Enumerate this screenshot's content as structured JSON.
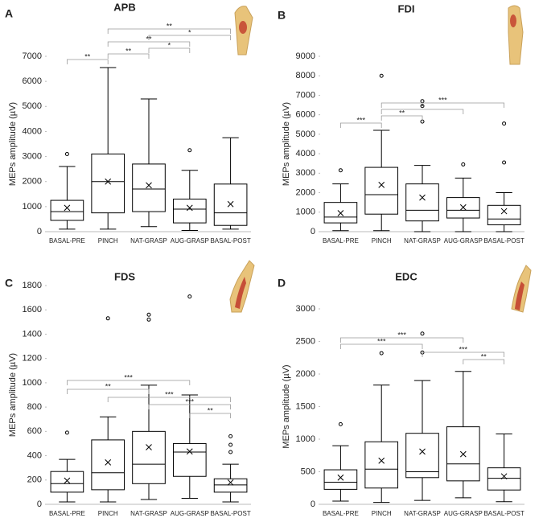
{
  "chart_data": [
    {
      "type": "box",
      "panel": "A",
      "title": "APB",
      "y_label": "MEPs amplitude (µV)",
      "categories": [
        "BASAL-PRE",
        "PINCH",
        "NAT-GRASP",
        "AUG-GRASP",
        "BASAL-POST"
      ],
      "boxes": [
        {
          "min": 100,
          "q1": 450,
          "median": 800,
          "q3": 1250,
          "max": 2600,
          "mean": 950,
          "outliers": [
            3100
          ]
        },
        {
          "min": 100,
          "q1": 750,
          "median": 2000,
          "q3": 3100,
          "max": 6550,
          "mean": 2000,
          "outliers": []
        },
        {
          "min": 200,
          "q1": 800,
          "median": 1700,
          "q3": 2700,
          "max": 5300,
          "mean": 1850,
          "outliers": []
        },
        {
          "min": 50,
          "q1": 350,
          "median": 900,
          "q3": 1300,
          "max": 2450,
          "mean": 950,
          "outliers": [
            3250
          ]
        },
        {
          "min": 100,
          "q1": 250,
          "median": 750,
          "q3": 1900,
          "max": 3750,
          "mean": 1100,
          "outliers": []
        }
      ],
      "brackets": [
        {
          "from": "PINCH",
          "to": "BASAL-POST",
          "label": "**"
        },
        {
          "from": "NAT-GRASP",
          "to": "BASAL-POST",
          "label": "*"
        },
        {
          "from": "PINCH",
          "to": "AUG-GRASP",
          "label": "**"
        },
        {
          "from": "NAT-GRASP",
          "to": "AUG-GRASP",
          "label": "*"
        },
        {
          "from": "PINCH",
          "to": "NAT-GRASP",
          "label": "**"
        },
        {
          "from": "BASAL-PRE",
          "to": "PINCH",
          "label": "**"
        }
      ],
      "ylim": [
        0,
        7000
      ],
      "yticks": [
        0,
        1000,
        2000,
        3000,
        4000,
        5000,
        6000,
        7000
      ],
      "color": "#000000"
    },
    {
      "type": "box",
      "panel": "B",
      "title": "FDI",
      "y_label": "MEPs amplitude (µV)",
      "categories": [
        "BASAL-PRE",
        "PINCH",
        "NAT-GRASP",
        "AUG-GRASP",
        "BASAL-POST"
      ],
      "boxes": [
        {
          "min": 50,
          "q1": 450,
          "median": 750,
          "q3": 1500,
          "max": 2450,
          "mean": 950,
          "outliers": [
            3150
          ]
        },
        {
          "min": 50,
          "q1": 900,
          "median": 1900,
          "q3": 3300,
          "max": 5200,
          "mean": 2400,
          "outliers": [
            8000
          ]
        },
        {
          "min": 0,
          "q1": 550,
          "median": 1100,
          "q3": 2450,
          "max": 3400,
          "mean": 1750,
          "outliers": [
            5650,
            6450,
            6700
          ]
        },
        {
          "min": 0,
          "q1": 700,
          "median": 1100,
          "q3": 1750,
          "max": 2750,
          "mean": 1250,
          "outliers": [
            3450
          ]
        },
        {
          "min": 0,
          "q1": 350,
          "median": 650,
          "q3": 1350,
          "max": 2000,
          "mean": 1050,
          "outliers": [
            3550,
            5550
          ]
        }
      ],
      "brackets": [
        {
          "from": "PINCH",
          "to": "BASAL-POST",
          "label": "***"
        },
        {
          "from": "PINCH",
          "to": "AUG-GRASP",
          "label": "*"
        },
        {
          "from": "PINCH",
          "to": "NAT-GRASP",
          "label": "**"
        },
        {
          "from": "BASAL-PRE",
          "to": "PINCH",
          "label": "***"
        }
      ],
      "ylim": [
        0,
        9000
      ],
      "yticks": [
        0,
        1000,
        2000,
        3000,
        4000,
        5000,
        6000,
        7000,
        8000,
        9000
      ],
      "color": "#000000"
    },
    {
      "type": "box",
      "panel": "C",
      "title": "FDS",
      "y_label": "MEPs amplitude (µV)",
      "categories": [
        "BASAL-PRE",
        "PINCH",
        "NAT-GRASP",
        "AUG-GRASP",
        "BASAL-POST"
      ],
      "boxes": [
        {
          "min": 20,
          "q1": 100,
          "median": 170,
          "q3": 270,
          "max": 370,
          "mean": 195,
          "outliers": [
            590
          ]
        },
        {
          "min": 20,
          "q1": 120,
          "median": 260,
          "q3": 530,
          "max": 720,
          "mean": 345,
          "outliers": [
            1530
          ]
        },
        {
          "min": 40,
          "q1": 170,
          "median": 330,
          "q3": 600,
          "max": 980,
          "mean": 470,
          "outliers": [
            1520,
            1560
          ]
        },
        {
          "min": 50,
          "q1": 230,
          "median": 430,
          "q3": 500,
          "max": 900,
          "mean": 435,
          "outliers": [
            1710
          ]
        },
        {
          "min": 20,
          "q1": 100,
          "median": 160,
          "q3": 210,
          "max": 330,
          "mean": 180,
          "outliers": [
            430,
            490,
            560
          ]
        }
      ],
      "brackets": [
        {
          "from": "BASAL-PRE",
          "to": "AUG-GRASP",
          "label": "***"
        },
        {
          "from": "BASAL-PRE",
          "to": "NAT-GRASP",
          "label": "**"
        },
        {
          "from": "PINCH",
          "to": "BASAL-POST",
          "label": "***"
        },
        {
          "from": "NAT-GRASP",
          "to": "BASAL-POST",
          "label": "***"
        },
        {
          "from": "AUG-GRASP",
          "to": "BASAL-POST",
          "label": "**"
        }
      ],
      "ylim": [
        0,
        1800
      ],
      "yticks": [
        0,
        200,
        400,
        600,
        800,
        1000,
        1200,
        1400,
        1600,
        1800
      ],
      "color": "#000000"
    },
    {
      "type": "box",
      "panel": "D",
      "title": "EDC",
      "y_label": "MEPs amplitude (µV)",
      "categories": [
        "BASAL-PRE",
        "PINCH",
        "NAT-GRASP",
        "AUG-GRASP",
        "BASAL-POST"
      ],
      "boxes": [
        {
          "min": 50,
          "q1": 230,
          "median": 340,
          "q3": 530,
          "max": 900,
          "mean": 410,
          "outliers": [
            1230
          ]
        },
        {
          "min": 30,
          "q1": 250,
          "median": 540,
          "q3": 960,
          "max": 1830,
          "mean": 670,
          "outliers": [
            2320
          ]
        },
        {
          "min": 60,
          "q1": 410,
          "median": 500,
          "q3": 1090,
          "max": 1900,
          "mean": 810,
          "outliers": [
            2330,
            2620
          ]
        },
        {
          "min": 100,
          "q1": 360,
          "median": 620,
          "q3": 1190,
          "max": 2040,
          "mean": 770,
          "outliers": []
        },
        {
          "min": 40,
          "q1": 220,
          "median": 400,
          "q3": 560,
          "max": 1080,
          "mean": 430,
          "outliers": []
        }
      ],
      "brackets": [
        {
          "from": "BASAL-PRE",
          "to": "AUG-GRASP",
          "label": "***"
        },
        {
          "from": "BASAL-PRE",
          "to": "NAT-GRASP",
          "label": "***"
        },
        {
          "from": "NAT-GRASP",
          "to": "BASAL-POST",
          "label": "***"
        },
        {
          "from": "AUG-GRASP",
          "to": "BASAL-POST",
          "label": "**"
        }
      ],
      "ylim": [
        0,
        3000
      ],
      "yticks": [
        0,
        500,
        1000,
        1500,
        2000,
        2500,
        3000
      ],
      "color": "#000000"
    }
  ]
}
